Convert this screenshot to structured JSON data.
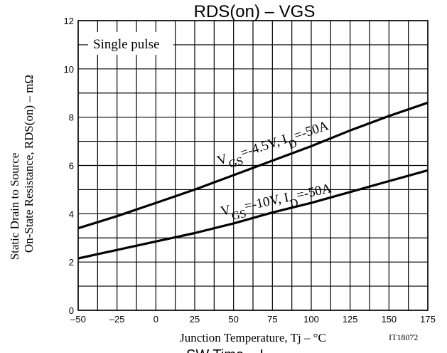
{
  "chart_data": {
    "type": "line",
    "title": "RDS(on) – VGS",
    "xlabel": "Junction Temperature, Tj – °C",
    "ylabel_line1": "Static Drain to Source",
    "ylabel_line2": "On-State Resistance, RDS(on) – mΩ",
    "xlim": [
      -50,
      175
    ],
    "ylim": [
      0,
      12
    ],
    "x_ticks": [
      -50,
      -25,
      0,
      25,
      50,
      75,
      100,
      125,
      150,
      175
    ],
    "x_tick_labels": [
      "–50",
      "–25",
      "0",
      "25",
      "50",
      "75",
      "100",
      "125",
      "150",
      "175"
    ],
    "y_ticks": [
      0,
      2,
      4,
      6,
      8,
      10,
      12
    ],
    "x_minor_grid": [
      -37.5,
      -12.5,
      12.5,
      37.5,
      62.5,
      87.5,
      112.5,
      137.5,
      162.5
    ],
    "grid": true,
    "annotation": "Single pulse",
    "figure_code": "IT18072",
    "series": [
      {
        "name": "VGS=-4.5V, ID=-50A",
        "x": [
          -50,
          -25,
          0,
          25,
          50,
          75,
          100,
          125,
          150,
          175
        ],
        "y": [
          3.4,
          3.9,
          4.45,
          5.0,
          5.6,
          6.2,
          6.8,
          7.45,
          8.05,
          8.6
        ]
      },
      {
        "name": "VGS=-10V, ID=-50A",
        "x": [
          -50,
          -25,
          0,
          25,
          50,
          75,
          100,
          125,
          150,
          175
        ],
        "y": [
          2.15,
          2.5,
          2.85,
          3.2,
          3.6,
          4.05,
          4.45,
          4.9,
          5.35,
          5.8
        ]
      }
    ],
    "curve_labels": [
      {
        "prefix": "V",
        "sub1": "GS",
        "mid": "=-4.5V, I",
        "sub2": "D",
        "suffix": "=-50A"
      },
      {
        "prefix": "V",
        "sub1": "GS",
        "mid": "=-10V, I",
        "sub2": "D",
        "suffix": "=-50A"
      }
    ],
    "bottom_cut_text": "SW Time – I"
  }
}
